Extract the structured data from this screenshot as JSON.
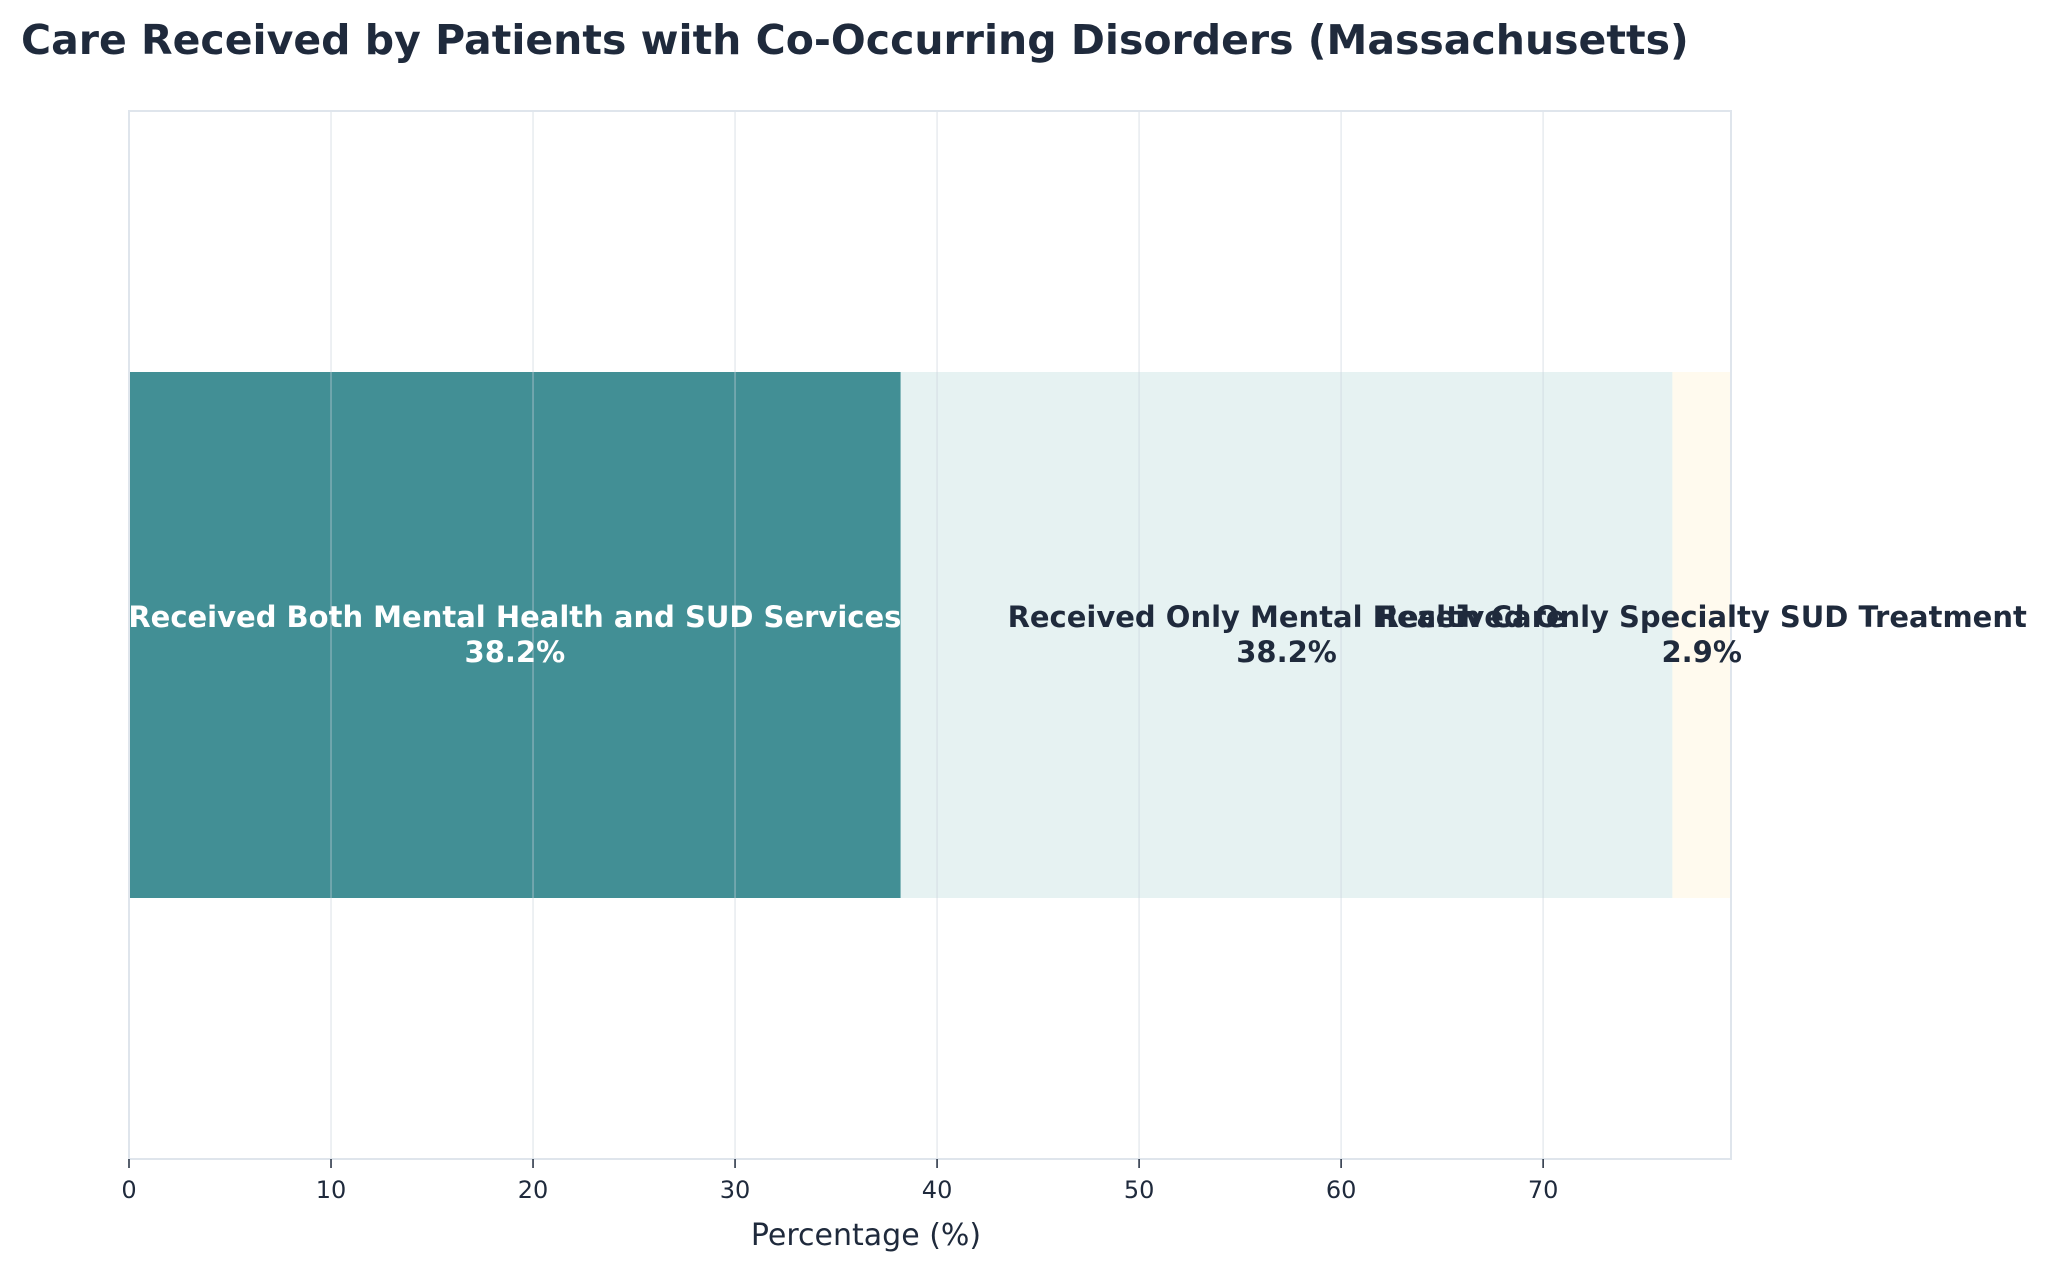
{
  "chart_data": {
    "type": "bar",
    "orientation": "horizontal-stacked",
    "title": "Care Received by Patients with Co-Occurring Disorders (Massachusetts)",
    "xlabel": "Percentage (%)",
    "ylabel": "",
    "xlim": [
      0,
      79.3
    ],
    "xticks": [
      "0",
      "10",
      "20",
      "30",
      "40",
      "50",
      "60",
      "70"
    ],
    "grid": true,
    "segments": [
      {
        "name": "Received Both Mental Health and SUD Services",
        "value": 38.2,
        "label": "38.2%",
        "color": "#428f95",
        "text_color": "#ffffff"
      },
      {
        "name": "Received Only Mental Health Care",
        "value": 38.2,
        "label": "38.2%",
        "color": "#e6f2f2",
        "text_color": "#1f2a3c"
      },
      {
        "name": "Received Only Specialty SUD Treatment",
        "value": 2.9,
        "label": "2.9%",
        "color": "#fffaee",
        "text_color": "#1f2a3c"
      }
    ]
  }
}
